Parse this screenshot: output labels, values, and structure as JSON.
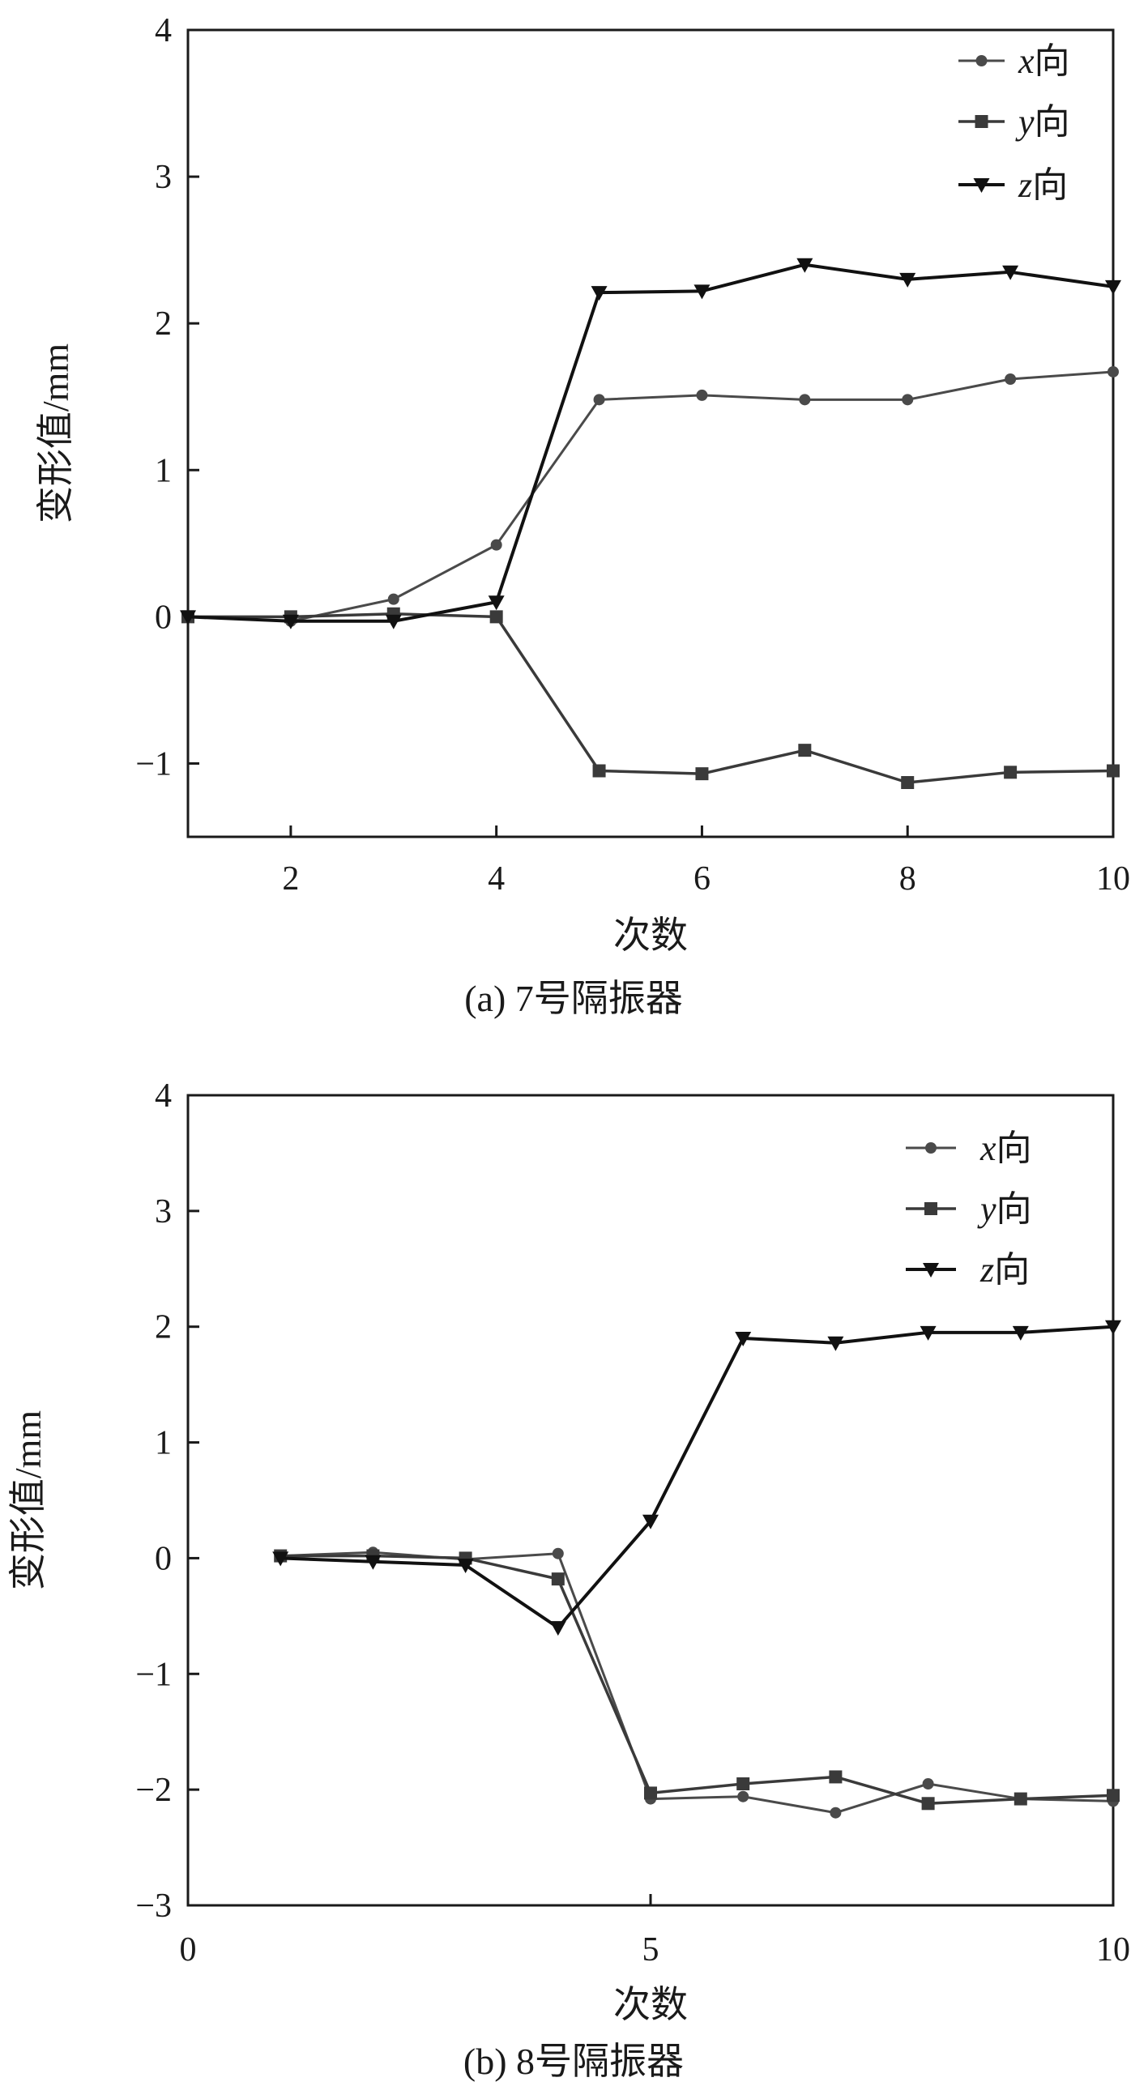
{
  "chart_data": [
    {
      "type": "line",
      "panel": "a",
      "caption": "(a) 7号隔振器",
      "xlabel": "次数",
      "ylabel": "变形值/mm",
      "xlim": [
        1,
        10
      ],
      "ylim": [
        -1.5,
        4
      ],
      "xticks": [
        2,
        4,
        6,
        8,
        10
      ],
      "yticks": [
        -1,
        0,
        1,
        2,
        3,
        4
      ],
      "tick_labels_x": [
        "2",
        "4",
        "6",
        "8",
        "10"
      ],
      "tick_labels_y": [
        "−1",
        "0",
        "1",
        "2",
        "3",
        "4"
      ],
      "legend_position": "top-right",
      "x": [
        1,
        2,
        3,
        4,
        5,
        6,
        7,
        8,
        9,
        10
      ],
      "series": [
        {
          "name": "x向",
          "var": "x",
          "suffix": "向",
          "marker": "circle",
          "values": [
            0.0,
            -0.03,
            0.12,
            0.49,
            1.48,
            1.51,
            1.48,
            1.48,
            1.62,
            1.67
          ]
        },
        {
          "name": "y向",
          "var": "y",
          "suffix": "向",
          "marker": "square",
          "values": [
            0.0,
            0.0,
            0.02,
            0.0,
            -1.05,
            -1.07,
            -0.91,
            -1.13,
            -1.06,
            -1.05
          ]
        },
        {
          "name": "z向",
          "var": "z",
          "suffix": "向",
          "marker": "triangle-down",
          "values": [
            0.0,
            -0.03,
            -0.03,
            0.1,
            2.21,
            2.22,
            2.4,
            2.3,
            2.35,
            2.25
          ]
        }
      ],
      "grid": false
    },
    {
      "type": "line",
      "panel": "b",
      "caption": "(b) 8号隔振器",
      "xlabel": "次数",
      "ylabel": "变形值/mm",
      "xlim": [
        0,
        10
      ],
      "ylim": [
        -3,
        4
      ],
      "xticks": [
        0,
        5,
        10
      ],
      "yticks": [
        -3,
        -2,
        -1,
        0,
        1,
        2,
        3,
        4
      ],
      "tick_labels_x": [
        "0",
        "5",
        "10"
      ],
      "tick_labels_y": [
        "−3",
        "−2",
        "−1",
        "0",
        "1",
        "2",
        "3",
        "4"
      ],
      "legend_position": "top-right",
      "x": [
        1,
        2,
        3,
        4,
        5,
        6,
        7,
        8,
        9,
        10
      ],
      "series": [
        {
          "name": "x向",
          "var": "x",
          "suffix": "向",
          "marker": "circle",
          "values": [
            0.02,
            0.05,
            -0.01,
            0.04,
            -2.08,
            -2.06,
            -2.2,
            -1.95,
            -2.08,
            -2.1
          ]
        },
        {
          "name": "y向",
          "var": "y",
          "suffix": "向",
          "marker": "square",
          "values": [
            0.02,
            0.02,
            0.0,
            -0.18,
            -2.03,
            -1.95,
            -1.89,
            -2.12,
            -2.08,
            -2.05
          ]
        },
        {
          "name": "z向",
          "var": "z",
          "suffix": "向",
          "marker": "triangle-down",
          "values": [
            0.0,
            -0.03,
            -0.06,
            -0.6,
            0.32,
            1.9,
            1.86,
            1.95,
            1.95,
            2.0
          ]
        }
      ],
      "grid": false
    }
  ],
  "colors": {
    "x_series": "#4a4a4a",
    "y_series": "#3a3a3a",
    "z_series": "#111111",
    "axis": "#1a1a1a"
  }
}
